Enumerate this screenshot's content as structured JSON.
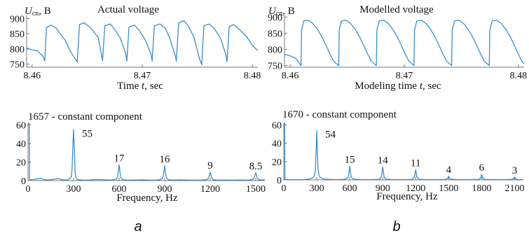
{
  "colors": {
    "series": "#3a8fc8",
    "axis": "#777777",
    "text": "#111111"
  },
  "chart_data": [
    {
      "id": "actual-voltage",
      "type": "line",
      "title": "Actual voltage",
      "ylabel_main": "U",
      "ylabel_sub": "cn",
      "ylabel_unit": ", B",
      "xlabel_prefix": "Time ",
      "xlabel_var": "t",
      "xlabel_unit": ", sec",
      "xlim": [
        8.4595,
        8.4805
      ],
      "ylim": [
        740,
        910
      ],
      "xticks": [
        "8.46",
        "8.47",
        "8.48"
      ],
      "xtick_values": [
        8.46,
        8.47,
        8.48
      ],
      "yticks": [
        750,
        800,
        850,
        900
      ],
      "grid": false,
      "x": [
        8.4595,
        8.46,
        8.4605,
        8.461,
        8.46115,
        8.4613,
        8.4617,
        8.4622,
        8.4625,
        8.463,
        8.4635,
        8.464,
        8.4641,
        8.4643,
        8.4647,
        8.4653,
        8.466,
        8.4663,
        8.4664,
        8.4666,
        8.4671,
        8.4675,
        8.468,
        8.4685,
        8.4686,
        8.4688,
        8.4693,
        8.4697,
        8.4703,
        8.4708,
        8.4709,
        8.4711,
        8.4716,
        8.4721,
        8.4725,
        8.473,
        8.4731,
        8.4733,
        8.4738,
        8.4742,
        8.4747,
        8.4752,
        8.4754,
        8.4756,
        8.4761,
        8.4766,
        8.4771,
        8.4776,
        8.4777,
        8.4779,
        8.4783,
        8.4788,
        8.4795,
        8.48,
        8.4805
      ],
      "values": [
        803,
        797,
        793,
        775,
        760,
        870,
        878,
        868,
        852,
        828,
        790,
        763,
        758,
        880,
        886,
        870,
        838,
        780,
        762,
        876,
        882,
        864,
        836,
        785,
        760,
        872,
        878,
        862,
        828,
        782,
        760,
        876,
        882,
        868,
        835,
        778,
        760,
        885,
        893,
        874,
        838,
        768,
        748,
        876,
        882,
        864,
        836,
        780,
        758,
        874,
        880,
        865,
        840,
        812,
        794
      ]
    },
    {
      "id": "modelled-voltage",
      "type": "line",
      "title": "Modelled voltage",
      "ylabel_main": "U",
      "ylabel_sub": "cn",
      "ylabel_unit": ", B",
      "xlabel_prefix": "Modeling time ",
      "xlabel_var": "t",
      "xlabel_unit": ", sec",
      "xlim": [
        8.4595,
        8.4805
      ],
      "ylim": [
        745,
        905
      ],
      "xticks": [
        "8.46",
        "8.47",
        "8.48"
      ],
      "xtick_values": [
        8.46,
        8.47,
        8.48
      ],
      "yticks": [
        750,
        800,
        850,
        900
      ],
      "grid": false,
      "x": [
        8.4595,
        8.46,
        8.4605,
        8.46095,
        8.461,
        8.4612,
        8.4616,
        8.462,
        8.4624,
        8.4628,
        8.4632,
        8.4635,
        8.4638,
        8.46425,
        8.4643,
        8.4645,
        8.4649,
        8.4653,
        8.4657,
        8.4661,
        8.4665,
        8.4668,
        8.4671,
        8.46755,
        8.4676,
        8.4678,
        8.4682,
        8.4686,
        8.469,
        8.4694,
        8.4698,
        8.4701,
        8.4704,
        8.47085,
        8.4709,
        8.4711,
        8.4715,
        8.4719,
        8.4723,
        8.4727,
        8.4731,
        8.4734,
        8.4737,
        8.47415,
        8.4742,
        8.4744,
        8.4748,
        8.4752,
        8.4756,
        8.476,
        8.4764,
        8.4767,
        8.477,
        8.47745,
        8.4775,
        8.4777,
        8.4781,
        8.4785,
        8.4789,
        8.4793,
        8.4797,
        8.48,
        8.4803,
        8.4805
      ],
      "values": [
        785,
        780,
        772,
        750,
        860,
        888,
        890,
        880,
        862,
        838,
        808,
        785,
        764,
        750,
        860,
        888,
        890,
        880,
        862,
        838,
        808,
        785,
        764,
        750,
        860,
        888,
        890,
        880,
        862,
        838,
        808,
        785,
        764,
        750,
        860,
        888,
        890,
        880,
        862,
        838,
        808,
        785,
        764,
        750,
        860,
        888,
        890,
        880,
        862,
        838,
        808,
        785,
        764,
        750,
        860,
        888,
        890,
        880,
        862,
        838,
        808,
        785,
        764,
        755
      ]
    },
    {
      "id": "actual-spectrum",
      "type": "line",
      "title": "1657 - constant component",
      "xlabel": "Frequency, Hz",
      "xlim": [
        0,
        1560
      ],
      "ylim": [
        0,
        62
      ],
      "xticks": [
        0,
        300,
        600,
        900,
        1200,
        1500
      ],
      "yticks": [
        0,
        20,
        40,
        60
      ],
      "grid": false,
      "peaks": [
        {
          "x": 300,
          "value": 55,
          "label": "55"
        },
        {
          "x": 600,
          "value": 17,
          "label": "17"
        },
        {
          "x": 900,
          "value": 16,
          "label": "16"
        },
        {
          "x": 1200,
          "value": 9,
          "label": "9"
        },
        {
          "x": 1500,
          "value": 8.5,
          "label": "8.5"
        }
      ],
      "x": [
        0,
        8,
        10,
        40,
        80,
        100,
        120,
        150,
        200,
        220,
        250,
        270,
        285,
        290,
        295,
        300,
        305,
        310,
        315,
        330,
        360,
        400,
        450,
        500,
        550,
        580,
        590,
        595,
        600,
        605,
        610,
        620,
        650,
        700,
        750,
        800,
        850,
        880,
        890,
        895,
        900,
        905,
        910,
        920,
        950,
        1000,
        1050,
        1100,
        1150,
        1180,
        1190,
        1195,
        1200,
        1205,
        1210,
        1220,
        1250,
        1300,
        1350,
        1400,
        1450,
        1480,
        1490,
        1495,
        1500,
        1505,
        1510,
        1520,
        1560
      ],
      "values": [
        62,
        62,
        1,
        1.2,
        2.5,
        1.5,
        0.8,
        1,
        2.2,
        1,
        0.6,
        1.5,
        4,
        12,
        35,
        55,
        35,
        10,
        3,
        1,
        0.5,
        0.6,
        1.2,
        0.8,
        0.6,
        1.5,
        4,
        10,
        17,
        10,
        4,
        1.2,
        0.5,
        0.6,
        0.8,
        0.5,
        0.6,
        1.5,
        4,
        9,
        16,
        9,
        4,
        1.2,
        0.5,
        0.8,
        0.6,
        0.5,
        0.6,
        1.2,
        3,
        6,
        9,
        6,
        3,
        1,
        0.5,
        0.6,
        0.5,
        0.6,
        0.5,
        1.2,
        3,
        6,
        8.5,
        6,
        3,
        1,
        0.5
      ]
    },
    {
      "id": "modelled-spectrum",
      "type": "line",
      "title": "1670 - constant component",
      "xlabel": "Frequency, Hz",
      "xlim": [
        0,
        2180
      ],
      "ylim": [
        0,
        62
      ],
      "xticks": [
        0,
        300,
        600,
        900,
        1200,
        1500,
        1800,
        2100
      ],
      "yticks": [
        0,
        20,
        40,
        60
      ],
      "grid": false,
      "peaks": [
        {
          "x": 300,
          "value": 54,
          "label": "54"
        },
        {
          "x": 600,
          "value": 15,
          "label": "15"
        },
        {
          "x": 900,
          "value": 14,
          "label": "14"
        },
        {
          "x": 1200,
          "value": 11,
          "label": "11"
        },
        {
          "x": 1500,
          "value": 4,
          "label": "4"
        },
        {
          "x": 1800,
          "value": 6,
          "label": "6"
        },
        {
          "x": 2100,
          "value": 3,
          "label": "3"
        }
      ],
      "x": [
        0,
        8,
        10,
        60,
        120,
        180,
        220,
        250,
        270,
        280,
        288,
        294,
        300,
        306,
        312,
        320,
        330,
        350,
        380,
        420,
        480,
        540,
        570,
        585,
        592,
        600,
        608,
        615,
        630,
        660,
        720,
        800,
        860,
        880,
        890,
        900,
        910,
        920,
        940,
        1000,
        1100,
        1160,
        1180,
        1190,
        1200,
        1210,
        1220,
        1240,
        1300,
        1400,
        1470,
        1490,
        1500,
        1510,
        1530,
        1600,
        1700,
        1770,
        1790,
        1800,
        1810,
        1830,
        1900,
        2000,
        2070,
        2090,
        2100,
        2110,
        2130,
        2180
      ],
      "values": [
        62,
        62,
        0.2,
        0.2,
        0.3,
        0.4,
        0.8,
        1.5,
        3,
        5,
        12,
        30,
        54,
        30,
        12,
        5,
        3,
        1.5,
        0.8,
        0.5,
        0.4,
        0.5,
        1.2,
        3,
        7,
        15,
        7,
        3,
        1.2,
        0.5,
        0.4,
        0.4,
        0.5,
        1.5,
        5,
        14,
        5,
        1.5,
        0.5,
        0.4,
        0.4,
        0.5,
        1.5,
        4,
        11,
        4,
        1.5,
        0.5,
        0.4,
        0.4,
        0.5,
        1.5,
        4,
        1.5,
        0.5,
        0.4,
        0.4,
        0.5,
        2,
        6,
        2,
        0.5,
        0.4,
        0.4,
        0.5,
        1.2,
        3,
        1.2,
        0.4,
        0.3
      ]
    }
  ],
  "panel_labels": {
    "left": "a",
    "right": "b"
  }
}
